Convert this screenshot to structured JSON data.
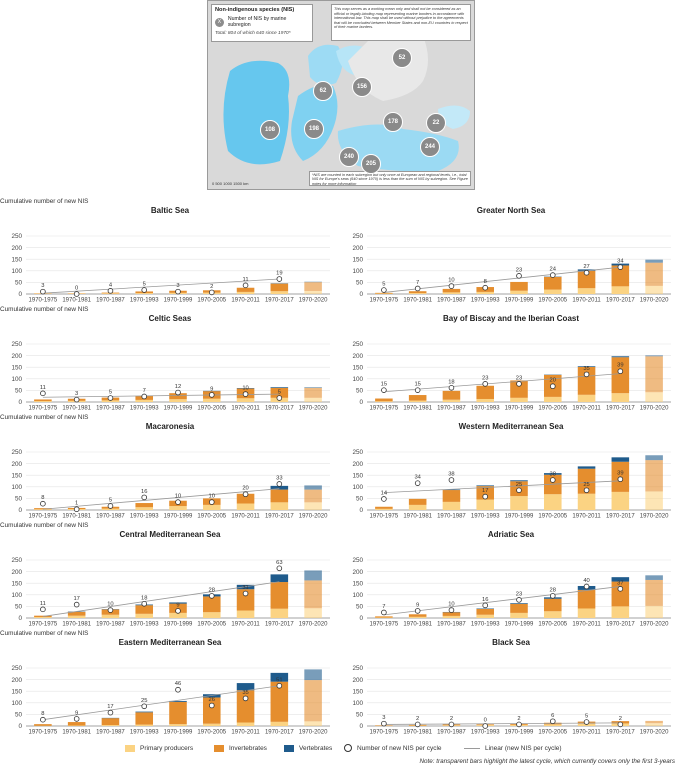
{
  "map": {
    "title": "Non-indigenous species (NIS)",
    "legend_badge": "X",
    "legend_label": "Number of NIS by marine subregion",
    "total": "Total: 804 of which 640 since 1970*",
    "disclaimer": "This map serves as a working mean only and shall not be considered as an official or legally-binding map representing marine borders in accordance with international law. This map shall be used without prejudice to the agreements that will be concluded between Member States and non-EU countries in respect of their marine borders.",
    "footnote": "*NIS are counted in each subregion but only once at European and regional levels, i.e., total NIS for Europe's seas (640 since 1970) is less than the sum of NIS by subregion. See Figure notes for more information",
    "scale": "0 500 1000 1500 km",
    "badges": [
      "52",
      "62",
      "156",
      "108",
      "198",
      "178",
      "22",
      "244",
      "240",
      "205"
    ]
  },
  "axis_label": "Cumulative number of new NIS",
  "legend": {
    "primary": "Primary producers",
    "invertebrates": "Invertebrates",
    "vertebrates": "Vertebrates",
    "points": "Number of new NIS per cycle",
    "linear": "Linear (new NIS per cycle)"
  },
  "note": "Note: transparent bars highlight the latest cycle, which currently covers only the first 3-years",
  "colors": {
    "primary": "#fbd383",
    "invertebrates": "#e58e2e",
    "vertebrates": "#1f5b8c",
    "trend": "#9a9a9a"
  },
  "chart_data": [
    {
      "type": "bar",
      "title": "Baltic Sea",
      "categories": [
        "1970-1975",
        "1970-1981",
        "1970-1987",
        "1970-1993",
        "1970-1999",
        "1970-2005",
        "1970-2011",
        "1970-2017",
        "1970-2020"
      ],
      "ylim": [
        0,
        250
      ],
      "yticks": [
        0,
        50,
        100,
        150,
        200,
        250
      ],
      "ylabel": "Cumulative number of new NIS",
      "series": [
        {
          "name": "Primary producers",
          "values": [
            2,
            2,
            3,
            4,
            5,
            6,
            9,
            12,
            13
          ]
        },
        {
          "name": "Invertebrates",
          "values": [
            1,
            1,
            3,
            7,
            9,
            10,
            18,
            33,
            38
          ]
        },
        {
          "name": "Vertebrates",
          "values": [
            0,
            0,
            0,
            0,
            0,
            0,
            0,
            1,
            2
          ]
        }
      ],
      "new_per_cycle": [
        3,
        0,
        4,
        5,
        3,
        2,
        11,
        19,
        null
      ],
      "trend_line": [
        1,
        19
      ]
    },
    {
      "type": "bar",
      "title": "Greater North Sea",
      "categories": [
        "1970-1975",
        "1970-1981",
        "1970-1987",
        "1970-1993",
        "1970-1999",
        "1970-2005",
        "1970-2011",
        "1970-2017",
        "1970-2020"
      ],
      "ylim": [
        0,
        250
      ],
      "yticks": [
        0,
        50,
        100,
        150,
        200,
        250
      ],
      "series": [
        {
          "name": "Primary producers",
          "values": [
            2,
            4,
            7,
            9,
            14,
            19,
            25,
            33,
            35
          ]
        },
        {
          "name": "Invertebrates",
          "values": [
            3,
            8,
            15,
            21,
            38,
            55,
            75,
            90,
            100
          ]
        },
        {
          "name": "Vertebrates",
          "values": [
            0,
            0,
            0,
            0,
            0,
            1,
            6,
            8,
            13
          ]
        }
      ],
      "new_per_cycle": [
        5,
        7,
        10,
        8,
        23,
        24,
        27,
        34,
        null
      ],
      "trend_line": [
        2,
        34
      ]
    },
    {
      "type": "bar",
      "title": "Celtic Seas",
      "categories": [
        "1970-1975",
        "1970-1981",
        "1970-1987",
        "1970-1993",
        "1970-1999",
        "1970-2005",
        "1970-2011",
        "1970-2017",
        "1970-2020"
      ],
      "ylim": [
        0,
        250
      ],
      "yticks": [
        0,
        50,
        100,
        150,
        200,
        250
      ],
      "ylabel": "Cumulative number of new NIS",
      "series": [
        {
          "name": "Primary producers",
          "values": [
            4,
            5,
            7,
            9,
            12,
            14,
            16,
            18,
            18
          ]
        },
        {
          "name": "Invertebrates",
          "values": [
            7,
            9,
            12,
            17,
            26,
            33,
            42,
            43,
            43
          ]
        },
        {
          "name": "Vertebrates",
          "values": [
            0,
            0,
            0,
            0,
            0,
            1,
            2,
            3,
            3
          ]
        }
      ],
      "new_per_cycle": [
        11,
        3,
        5,
        7,
        12,
        9,
        10,
        5,
        null
      ],
      "trend_line": [
        6,
        10
      ]
    },
    {
      "type": "bar",
      "title": "Bay of Biscay and the Iberian Coast",
      "categories": [
        "1970-1975",
        "1970-1981",
        "1970-1987",
        "1970-1993",
        "1970-1999",
        "1970-2005",
        "1970-2011",
        "1970-2017",
        "1970-2020"
      ],
      "ylim": [
        0,
        250
      ],
      "yticks": [
        0,
        50,
        100,
        150,
        200,
        250
      ],
      "series": [
        {
          "name": "Primary producers",
          "values": [
            3,
            6,
            10,
            13,
            18,
            22,
            31,
            38,
            42
          ]
        },
        {
          "name": "Invertebrates",
          "values": [
            12,
            24,
            38,
            57,
            75,
            95,
            120,
            155,
            155
          ]
        },
        {
          "name": "Vertebrates",
          "values": [
            0,
            0,
            0,
            0,
            0,
            1,
            3,
            4,
            4
          ]
        }
      ],
      "new_per_cycle": [
        15,
        15,
        18,
        23,
        23,
        20,
        35,
        39,
        null
      ],
      "trend_line": [
        13,
        36
      ]
    },
    {
      "type": "bar",
      "title": "Macaronesia",
      "categories": [
        "1970-1975",
        "1970-1981",
        "1970-1987",
        "1970-1993",
        "1970-1999",
        "1970-2005",
        "1970-2011",
        "1970-2017",
        "1970-2020"
      ],
      "ylim": [
        0,
        250
      ],
      "yticks": [
        0,
        50,
        100,
        150,
        200,
        250
      ],
      "ylabel": "Cumulative number of new NIS",
      "series": [
        {
          "name": "Primary producers",
          "values": [
            3,
            4,
            6,
            12,
            17,
            22,
            28,
            33,
            33
          ]
        },
        {
          "name": "Invertebrates",
          "values": [
            5,
            5,
            8,
            18,
            23,
            28,
            42,
            55,
            55
          ]
        },
        {
          "name": "Vertebrates",
          "values": [
            0,
            0,
            0,
            0,
            0,
            0,
            0,
            16,
            18
          ]
        }
      ],
      "new_per_cycle": [
        8,
        1,
        5,
        16,
        10,
        10,
        20,
        33,
        null
      ],
      "trend_line": [
        1,
        27
      ]
    },
    {
      "type": "bar",
      "title": "Western Mediterranean Sea",
      "categories": [
        "1970-1975",
        "1970-1981",
        "1970-1987",
        "1970-1993",
        "1970-1999",
        "1970-2005",
        "1970-2011",
        "1970-2017",
        "1970-2020"
      ],
      "ylim": [
        0,
        250
      ],
      "yticks": [
        0,
        50,
        100,
        150,
        200,
        250
      ],
      "series": [
        {
          "name": "Primary producers",
          "values": [
            5,
            22,
            35,
            45,
            60,
            68,
            70,
            78,
            80
          ]
        },
        {
          "name": "Invertebrates",
          "values": [
            9,
            26,
            51,
            58,
            64,
            84,
            108,
            130,
            135
          ]
        },
        {
          "name": "Vertebrates",
          "values": [
            0,
            0,
            2,
            3,
            4,
            7,
            10,
            19,
            21
          ]
        }
      ],
      "new_per_cycle": [
        14,
        34,
        38,
        17,
        25,
        38,
        25,
        39,
        null
      ],
      "trend_line": [
        22,
        37
      ]
    },
    {
      "type": "bar",
      "title": "Central Mediterranean Sea",
      "categories": [
        "1970-1975",
        "1970-1981",
        "1970-1987",
        "1970-1993",
        "1970-1999",
        "1970-2005",
        "1970-2011",
        "1970-2017",
        "1970-2020"
      ],
      "ylim": [
        0,
        250
      ],
      "yticks": [
        0,
        50,
        100,
        150,
        200,
        250
      ],
      "ylabel": "Cumulative number of new NIS",
      "series": [
        {
          "name": "Primary producers",
          "values": [
            4,
            10,
            14,
            18,
            22,
            25,
            32,
            40,
            42
          ]
        },
        {
          "name": "Invertebrates",
          "values": [
            6,
            17,
            23,
            37,
            40,
            68,
            92,
            115,
            120
          ]
        },
        {
          "name": "Vertebrates",
          "values": [
            0,
            1,
            1,
            3,
            5,
            9,
            19,
            33,
            43
          ]
        }
      ],
      "new_per_cycle": [
        11,
        17,
        10,
        18,
        9,
        28,
        31,
        63,
        null
      ],
      "trend_line": [
        2,
        46
      ]
    },
    {
      "type": "bar",
      "title": "Adriatic Sea",
      "categories": [
        "1970-1975",
        "1970-1981",
        "1970-1987",
        "1970-1993",
        "1970-1999",
        "1970-2005",
        "1970-2011",
        "1970-2017",
        "1970-2020"
      ],
      "ylim": [
        0,
        250
      ],
      "yticks": [
        0,
        50,
        100,
        150,
        200,
        250
      ],
      "series": [
        {
          "name": "Primary producers",
          "values": [
            2,
            5,
            9,
            14,
            22,
            29,
            41,
            50,
            52
          ]
        },
        {
          "name": "Invertebrates",
          "values": [
            5,
            11,
            16,
            25,
            39,
            54,
            80,
            107,
            112
          ]
        },
        {
          "name": "Vertebrates",
          "values": [
            0,
            0,
            1,
            2,
            3,
            6,
            17,
            19,
            20
          ]
        }
      ],
      "new_per_cycle": [
        7,
        9,
        10,
        16,
        23,
        28,
        40,
        37,
        null
      ],
      "trend_line": [
        4,
        40
      ]
    },
    {
      "type": "bar",
      "title": "Eastern Mediterranean Sea",
      "categories": [
        "1970-1975",
        "1970-1981",
        "1970-1987",
        "1970-1993",
        "1970-1999",
        "1970-2005",
        "1970-2011",
        "1970-2017",
        "1970-2020"
      ],
      "ylim": [
        0,
        250
      ],
      "yticks": [
        0,
        50,
        100,
        150,
        200,
        250
      ],
      "ylabel": "Cumulative number of new NIS",
      "series": [
        {
          "name": "Primary producers",
          "values": [
            1,
            2,
            4,
            6,
            8,
            10,
            15,
            18,
            20
          ]
        },
        {
          "name": "Invertebrates",
          "values": [
            7,
            15,
            30,
            53,
            96,
            113,
            139,
            173,
            178
          ]
        },
        {
          "name": "Vertebrates",
          "values": [
            0,
            0,
            1,
            3,
            4,
            14,
            31,
            38,
            46
          ]
        }
      ],
      "new_per_cycle": [
        8,
        9,
        17,
        25,
        46,
        26,
        35,
        51,
        null
      ],
      "trend_line": [
        8,
        51
      ]
    },
    {
      "type": "bar",
      "title": "Black Sea",
      "categories": [
        "1970-1975",
        "1970-1981",
        "1970-1987",
        "1970-1993",
        "1970-1999",
        "1970-2005",
        "1970-2011",
        "1970-2017",
        "1970-2020"
      ],
      "ylim": [
        0,
        250
      ],
      "yticks": [
        0,
        50,
        100,
        150,
        200,
        250
      ],
      "series": [
        {
          "name": "Primary producers",
          "values": [
            1,
            2,
            3,
            4,
            5,
            7,
            10,
            11,
            12
          ]
        },
        {
          "name": "Invertebrates",
          "values": [
            2,
            3,
            4,
            3,
            4,
            7,
            9,
            10,
            10
          ]
        },
        {
          "name": "Vertebrates",
          "values": [
            0,
            0,
            0,
            0,
            0,
            0,
            0,
            0,
            0
          ]
        }
      ],
      "new_per_cycle": [
        3,
        2,
        2,
        0,
        2,
        6,
        5,
        2,
        null
      ],
      "trend_line": [
        2,
        4
      ]
    }
  ]
}
